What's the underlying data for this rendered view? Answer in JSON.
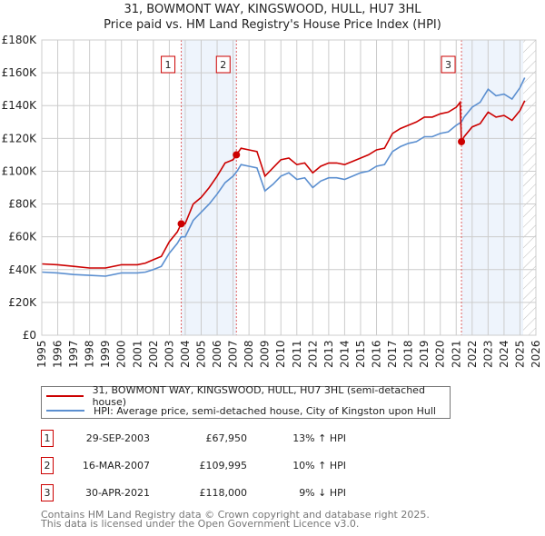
{
  "chart_data": {
    "type": "line",
    "title": "31, BOWMONT WAY, KINGSWOOD, HULL, HU7 3HL",
    "subtitle": "Price paid vs. HM Land Registry's House Price Index (HPI)",
    "xlim": [
      1995,
      2026
    ],
    "ylim": [
      0,
      180000
    ],
    "x_ticks": [
      "1995",
      "1996",
      "1997",
      "1998",
      "1999",
      "2000",
      "2001",
      "2002",
      "2003",
      "2004",
      "2005",
      "2006",
      "2007",
      "2008",
      "2009",
      "2010",
      "2011",
      "2012",
      "2013",
      "2014",
      "2015",
      "2016",
      "2017",
      "2018",
      "2019",
      "2020",
      "2021",
      "2022",
      "2023",
      "2024",
      "2025",
      "2026"
    ],
    "y_ticks": [
      {
        "value": 0,
        "label": "£0"
      },
      {
        "value": 20000,
        "label": "£20K"
      },
      {
        "value": 40000,
        "label": "£40K"
      },
      {
        "value": 60000,
        "label": "£60K"
      },
      {
        "value": 80000,
        "label": "£80K"
      },
      {
        "value": 100000,
        "label": "£100K"
      },
      {
        "value": 120000,
        "label": "£120K"
      },
      {
        "value": 140000,
        "label": "£140K"
      },
      {
        "value": 160000,
        "label": "£160K"
      },
      {
        "value": 180000,
        "label": "£180K"
      }
    ],
    "grid": true,
    "series": [
      {
        "name": "31, BOWMONT WAY, KINGSWOOD, HULL, HU7 3HL (semi-detached house)",
        "color": "#cc0000",
        "x": [
          1995,
          1996,
          1997,
          1998,
          1999,
          2000,
          2001,
          2001.5,
          2002,
          2002.5,
          2003,
          2003.5,
          2003.75,
          2004,
          2004.5,
          2005,
          2005.5,
          2006,
          2006.5,
          2007,
          2007.21,
          2007.5,
          2008,
          2008.5,
          2009,
          2009.5,
          2010,
          2010.5,
          2011,
          2011.5,
          2012,
          2012.5,
          2013,
          2013.5,
          2014,
          2014.5,
          2015,
          2015.5,
          2016,
          2016.5,
          2017,
          2017.5,
          2018,
          2018.5,
          2019,
          2019.5,
          2020,
          2020.5,
          2021,
          2021.25,
          2021.33,
          2021.5,
          2022,
          2022.5,
          2023,
          2023.5,
          2024,
          2024.5,
          2025,
          2025.3
        ],
        "y": [
          43500,
          43000,
          42000,
          41000,
          41000,
          43000,
          43000,
          44000,
          46000,
          48000,
          57000,
          63000,
          67950,
          68000,
          80000,
          84000,
          90000,
          97000,
          105000,
          107000,
          109995,
          114000,
          113000,
          112000,
          97000,
          102000,
          107000,
          108000,
          104000,
          105000,
          99000,
          103000,
          105000,
          105000,
          104000,
          106000,
          108000,
          110000,
          113000,
          114000,
          123000,
          126000,
          128000,
          130000,
          133000,
          133000,
          135000,
          136000,
          139000,
          142000,
          118000,
          121000,
          127000,
          129000,
          136000,
          133000,
          134000,
          131000,
          137000,
          143000
        ]
      },
      {
        "name": "HPI: Average price, semi-detached house, City of Kingston upon Hull",
        "color": "#5b8fd0",
        "x": [
          1995,
          1996,
          1997,
          1998,
          1999,
          2000,
          2001,
          2001.5,
          2002,
          2002.5,
          2003,
          2003.5,
          2003.75,
          2004,
          2004.5,
          2005,
          2005.5,
          2006,
          2006.5,
          2007,
          2007.25,
          2007.5,
          2008,
          2008.5,
          2009,
          2009.5,
          2010,
          2010.5,
          2011,
          2011.5,
          2012,
          2012.5,
          2013,
          2013.5,
          2014,
          2014.5,
          2015,
          2015.5,
          2016,
          2016.5,
          2017,
          2017.5,
          2018,
          2018.5,
          2019,
          2019.5,
          2020,
          2020.5,
          2021,
          2021.33,
          2021.5,
          2022,
          2022.5,
          2023,
          2023.5,
          2024,
          2024.5,
          2025,
          2025.3
        ],
        "y": [
          38500,
          38000,
          37000,
          36500,
          36000,
          38000,
          38000,
          38500,
          40000,
          42000,
          50000,
          56000,
          60000,
          60000,
          70000,
          75000,
          80000,
          86000,
          93000,
          97000,
          100000,
          104000,
          103000,
          102000,
          88000,
          92000,
          97000,
          99000,
          95000,
          96000,
          90000,
          94000,
          96000,
          96000,
          95000,
          97000,
          99000,
          100000,
          103000,
          104000,
          112000,
          115000,
          117000,
          118000,
          121000,
          121000,
          123000,
          124000,
          128000,
          130000,
          133000,
          139000,
          142000,
          150000,
          146000,
          147000,
          144000,
          151000,
          157000
        ]
      }
    ],
    "transactions": [
      {
        "id": "1",
        "date": "29-SEP-2003",
        "x": 2003.75,
        "price": 67950,
        "price_label": "£67,950",
        "hpi": "13% ↑ HPI"
      },
      {
        "id": "2",
        "date": "16-MAR-2007",
        "x": 2007.21,
        "price": 109995,
        "price_label": "£109,995",
        "hpi": "10% ↑ HPI"
      },
      {
        "id": "3",
        "date": "30-APR-2021",
        "x": 2021.33,
        "price": 118000,
        "price_label": "£118,000",
        "hpi": "9% ↓ HPI"
      }
    ],
    "shaded_ranges": [
      [
        2003.75,
        2007.21
      ],
      [
        2021.33,
        2025.2
      ]
    ],
    "forecast_hatch_from": 2025.2,
    "legend_position": "bottom"
  },
  "footer": {
    "line1": "Contains HM Land Registry data © Crown copyright and database right 2025.",
    "line2": "This data is licensed under the Open Government Licence v3.0."
  }
}
